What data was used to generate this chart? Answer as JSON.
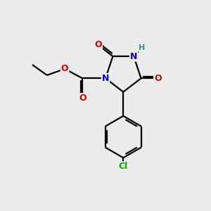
{
  "background_color": "#ebebeb",
  "atom_colors": {
    "C": "#000000",
    "N": "#0000cc",
    "O": "#cc0000",
    "H": "#2e8b8b",
    "Cl": "#00aa00"
  },
  "bond_color": "#000000",
  "bond_width": 1.6,
  "figsize": [
    3.0,
    3.0
  ],
  "dpi": 100
}
